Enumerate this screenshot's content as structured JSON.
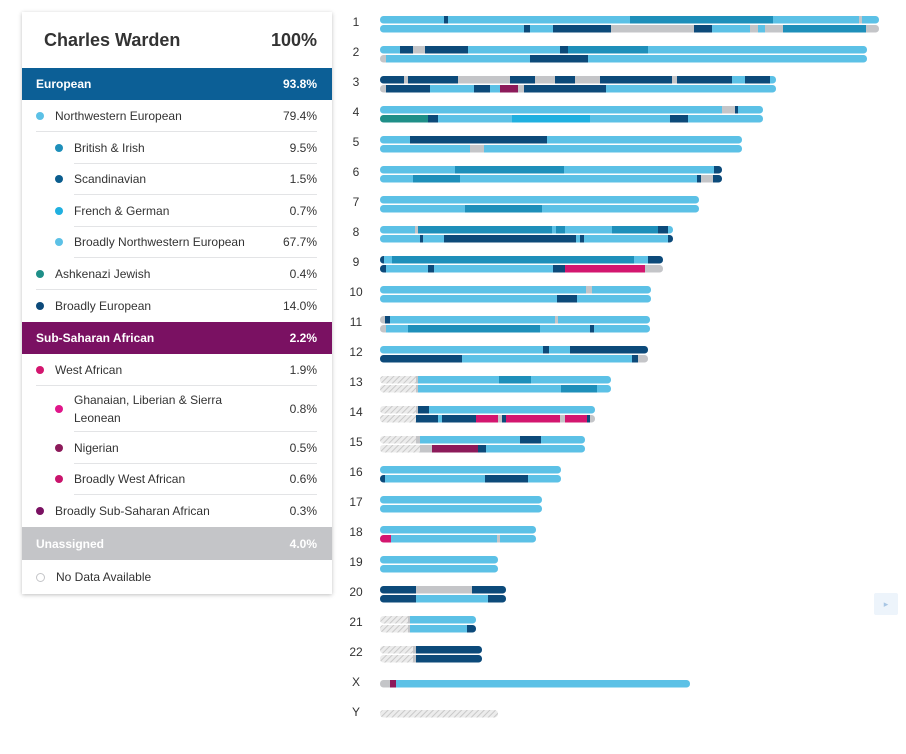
{
  "profile": {
    "name": "Charles Warden",
    "total": "100%"
  },
  "colors": {
    "european_band": "#0c5f96",
    "subsaharan_band": "#7a1162",
    "unassigned_band": "#c4c5c8",
    "nw_european": "#5cc1e6",
    "british_irish": "#1e8fba",
    "scandinavian": "#0b5d8e",
    "french_german": "#20b0e0",
    "broadly_nw": "#5cc1e6",
    "ashkenazi": "#1f8f88",
    "broadly_european": "#0c4a7a",
    "west_african": "#d3166f",
    "ghanaian": "#e0168a",
    "nigerian": "#8c1a5a",
    "broadly_west_african": "#c9146c",
    "broadly_ssa": "#7a1162",
    "no_data": "#c4c5c8"
  },
  "bands": {
    "european": {
      "label": "European",
      "pct": "93.8%"
    },
    "subsaharan": {
      "label": "Sub-Saharan African",
      "pct": "2.2%"
    },
    "unassigned": {
      "label": "Unassigned",
      "pct": "4.0%"
    }
  },
  "european_rows": [
    {
      "label": "Northwestern European",
      "pct": "79.4%",
      "level": 1,
      "color": "#5cc1e6"
    },
    {
      "label": "British & Irish",
      "pct": "9.5%",
      "level": 2,
      "color": "#1e8fba"
    },
    {
      "label": "Scandinavian",
      "pct": "1.5%",
      "level": 2,
      "color": "#0b5d8e"
    },
    {
      "label": "French & German",
      "pct": "0.7%",
      "level": 2,
      "color": "#20b0e0"
    },
    {
      "label": "Broadly Northwestern European",
      "pct": "67.7%",
      "level": 2,
      "color": "#5cc1e6"
    },
    {
      "label": "Ashkenazi Jewish",
      "pct": "0.4%",
      "level": 1,
      "color": "#1f8f88"
    },
    {
      "label": "Broadly European",
      "pct": "14.0%",
      "level": 1,
      "color": "#0c4a7a"
    }
  ],
  "ssa_rows": [
    {
      "label": "West African",
      "pct": "1.9%",
      "level": 1,
      "color": "#d3166f"
    },
    {
      "label": "Ghanaian, Liberian & Sierra Leonean",
      "pct": "0.8%",
      "level": 2,
      "color": "#e0168a"
    },
    {
      "label": "Nigerian",
      "pct": "0.5%",
      "level": 2,
      "color": "#8c1a5a"
    },
    {
      "label": "Broadly West African",
      "pct": "0.6%",
      "level": 2,
      "color": "#c9146c"
    },
    {
      "label": "Broadly Sub-Saharan African",
      "pct": "0.3%",
      "level": 1,
      "color": "#7a1162"
    }
  ],
  "no_data": {
    "label": "No Data Available",
    "color": "#c4c5c8"
  },
  "chromosome_labels": [
    "1",
    "2",
    "3",
    "4",
    "5",
    "6",
    "7",
    "8",
    "9",
    "10",
    "11",
    "12",
    "13",
    "14",
    "15",
    "16",
    "17",
    "18",
    "19",
    "20",
    "21",
    "22",
    "X",
    "Y"
  ],
  "side_button_icon": "collapse-icon"
}
